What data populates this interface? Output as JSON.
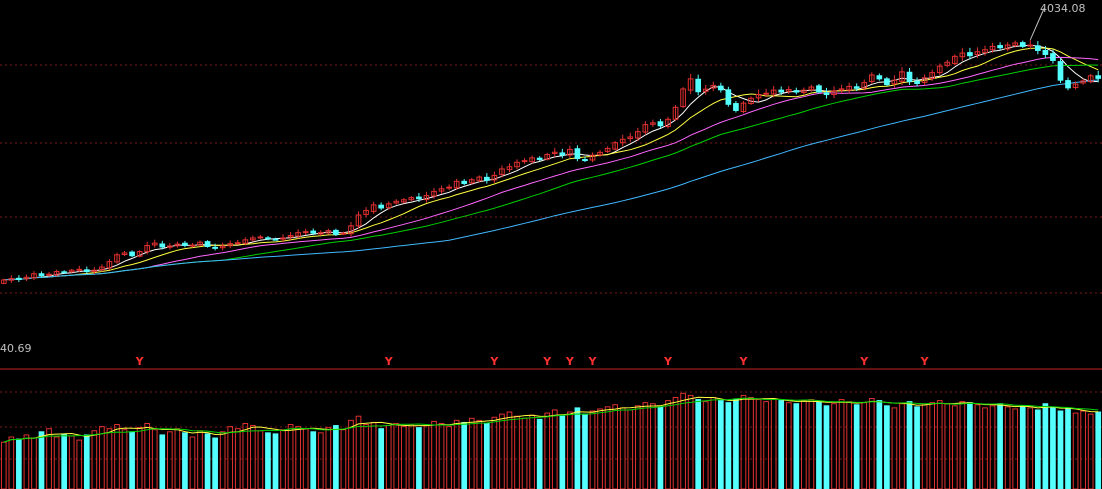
{
  "colors": {
    "background": "#000000",
    "up": "#e03030",
    "down": "#54ffff",
    "grid": "#7a1a1a",
    "separator": "#c02020",
    "label": "#c0c0c0",
    "signal": "#ff3030",
    "ma5": "#ffffff",
    "ma10": "#ffff40",
    "ma20": "#ff66ff",
    "ma30": "#00d000",
    "ma60": "#40b8ff",
    "vol_ma5": "#ffff40",
    "vol_ma10": "#00d000"
  },
  "labels": {
    "high_price": "4034.08",
    "low_price": "40.69",
    "signal_mark": "Y"
  },
  "chart_data": {
    "type": "candlestick",
    "title": "",
    "xlabel": "",
    "ylabel": "",
    "price_ylim": [
      2400,
      4050
    ],
    "volume_ylim": [
      0,
      100
    ],
    "grid": true,
    "price_high_label": 4034.08,
    "lower_panel_label": 40.69,
    "moving_averages": [
      "MA5",
      "MA10",
      "MA20",
      "MA30",
      "MA60"
    ],
    "start_close": 2500,
    "returns": [
      0.6,
      0.3,
      -0.2,
      0.5,
      0.8,
      -0.4,
      0.3,
      0.6,
      -0.1,
      0.4,
      0.2,
      -0.5,
      0.3,
      0.7,
      1.2,
      1.5,
      0.4,
      -0.6,
      0.9,
      1.3,
      0.5,
      -0.8,
      0.2,
      0.4,
      -0.3,
      0.1,
      0.6,
      -0.9,
      -0.2,
      0.3,
      0.5,
      0.2,
      0.6,
      0.4,
      0.2,
      -0.4,
      -0.1,
      0.3,
      0.5,
      0.6,
      0.2,
      -0.3,
      0.1,
      0.4,
      -0.8,
      0.3,
      1.5,
      2.2,
      0.9,
      1.1,
      -0.6,
      0.8,
      0.5,
      0.3,
      0.4,
      -0.2,
      0.6,
      0.8,
      0.5,
      0.3,
      1.1,
      -0.4,
      0.7,
      0.5,
      -0.6,
      0.9,
      1.2,
      0.4,
      0.8,
      0.3,
      0.5,
      -0.3,
      0.9,
      0.4,
      -0.5,
      1.0,
      -1.6,
      -0.2,
      0.8,
      0.5,
      0.7,
      1.0,
      0.6,
      0.4,
      0.9,
      1.2,
      0.3,
      -0.5,
      1.1,
      2.0,
      3.0,
      1.6,
      -2.0,
      0.4,
      0.6,
      -0.7,
      -2.3,
      -1.0,
      1.2,
      0.8,
      0.6,
      0.2,
      0.5,
      -0.3,
      0.4,
      -0.4,
      0.3,
      0.5,
      -0.8,
      -0.4,
      0.6,
      0.3,
      0.4,
      -0.3,
      0.9,
      1.2,
      -0.6,
      -0.9,
      0.7,
      1.3,
      -1.5,
      -0.3,
      0.9,
      0.8,
      1.0,
      0.6,
      0.9,
      0.5,
      -0.4,
      0.6,
      0.3,
      0.5,
      -0.2,
      0.4,
      0.3,
      -0.5,
      0.2,
      -0.8,
      -0.6,
      -0.9,
      -3.0,
      -1.2,
      0.6,
      0.5,
      0.8,
      -0.4
    ],
    "volume": [
      45,
      50,
      48,
      52,
      49,
      55,
      58,
      50,
      53,
      51,
      47,
      52,
      56,
      60,
      58,
      62,
      57,
      55,
      59,
      63,
      57,
      52,
      55,
      58,
      54,
      50,
      56,
      53,
      49,
      55,
      60,
      58,
      63,
      61,
      56,
      54,
      53,
      57,
      62,
      60,
      58,
      55,
      54,
      59,
      61,
      57,
      66,
      70,
      62,
      64,
      58,
      61,
      63,
      60,
      62,
      59,
      61,
      65,
      63,
      60,
      66,
      64,
      68,
      66,
      63,
      69,
      72,
      74,
      70,
      68,
      71,
      67,
      73,
      76,
      70,
      74,
      78,
      72,
      75,
      77,
      79,
      81,
      78,
      76,
      80,
      83,
      82,
      79,
      85,
      88,
      92,
      90,
      86,
      84,
      88,
      85,
      83,
      86,
      90,
      88,
      86,
      84,
      87,
      85,
      83,
      82,
      85,
      86,
      84,
      80,
      82,
      86,
      84,
      81,
      83,
      87,
      85,
      80,
      78,
      82,
      84,
      79,
      81,
      83,
      85,
      82,
      80,
      84,
      83,
      81,
      78,
      80,
      82,
      79,
      77,
      80,
      78,
      76,
      82,
      78,
      75,
      77,
      73,
      75,
      72,
      74
    ]
  }
}
